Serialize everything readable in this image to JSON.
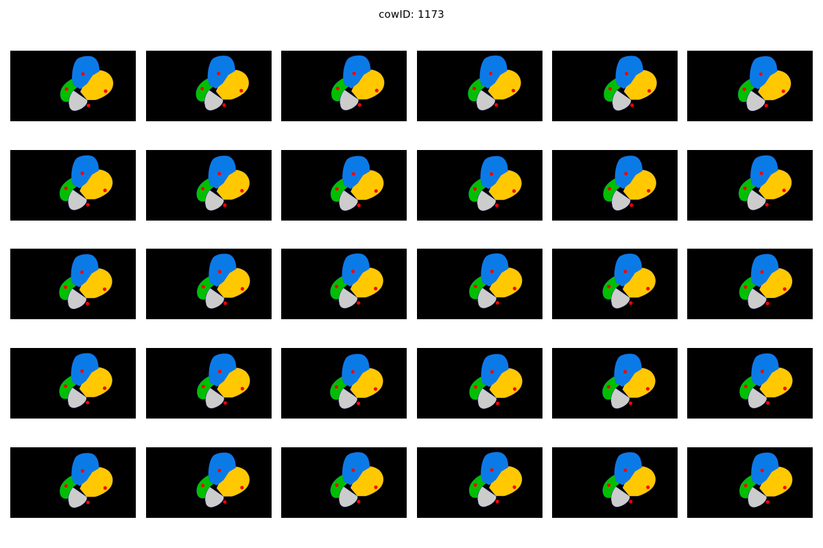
{
  "figure": {
    "title": "cowID: 1173"
  },
  "grid": {
    "rows": 5,
    "cols": 6
  },
  "colors": {
    "background": "#000000",
    "front_left": "#0a7be6",
    "front_right": "#ffc800",
    "rear_left": "#00bf00",
    "rear_right": "#cccccc",
    "keypoint": "#ff0000",
    "outline": "#3333ff"
  }
}
